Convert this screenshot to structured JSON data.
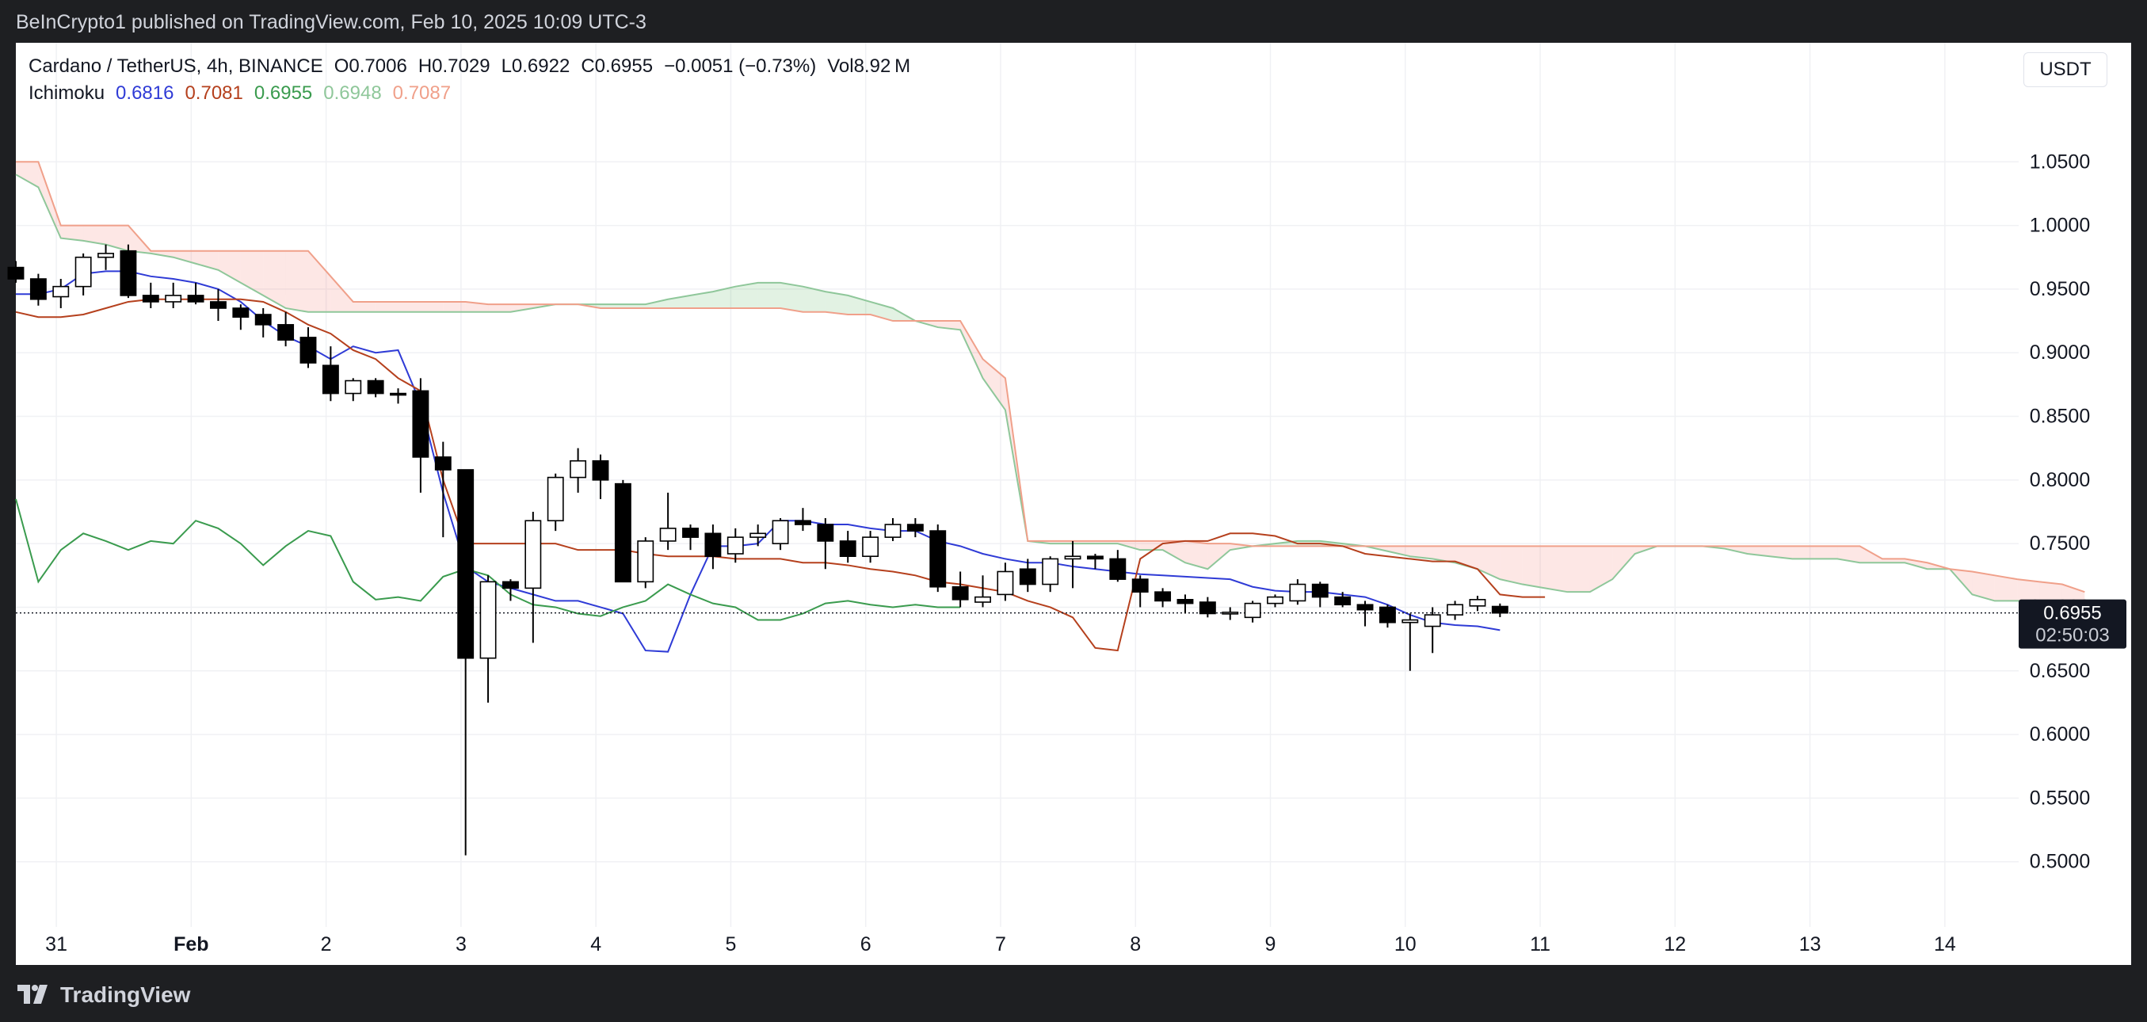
{
  "header": {
    "published_by": "BeInCrypto1 published on TradingView.com, Feb 10, 2025 10:09 UTC-3"
  },
  "footer": {
    "brand": "TradingView"
  },
  "legend": {
    "symbol": "Cardano / TetherUS, 4h, BINANCE",
    "open": "O0.7006",
    "high": "H0.7029",
    "low": "L0.6922",
    "close": "C0.6955",
    "change": "−0.0051 (−0.73%)",
    "volume": "Vol8.92 M",
    "indicator": "Ichimoku",
    "ichimoku_values": [
      "0.6816",
      "0.7081",
      "0.6955",
      "0.6948",
      "0.7087"
    ],
    "ichimoku_colors": [
      "#2f3bd6",
      "#b5401d",
      "#3a9b4e",
      "#8fc79a",
      "#f0a08a"
    ]
  },
  "currency_button": "USDT",
  "price_badge": {
    "price": "0.6955",
    "countdown": "02:50:03"
  },
  "chart_data": {
    "type": "candlestick",
    "title": "Cardano / TetherUS, 4h, BINANCE",
    "y_axis_ticks": [
      "1.0500",
      "1.0000",
      "0.9500",
      "0.9000",
      "0.8500",
      "0.8000",
      "0.7500",
      "0.7000",
      "0.6500",
      "0.6000",
      "0.5500",
      "0.5000"
    ],
    "x_axis_ticks": [
      "31",
      "Feb",
      "2",
      "3",
      "4",
      "5",
      "6",
      "7",
      "8",
      "9",
      "10",
      "11",
      "12",
      "13",
      "14"
    ],
    "x_tick_day_index": [
      -1,
      0,
      1,
      2,
      3,
      4,
      5,
      6,
      7,
      8,
      9,
      10,
      11,
      12,
      13
    ],
    "x_range_days": [
      -1.3,
      13.5
    ],
    "y_range": [
      0.455,
      1.09
    ],
    "last_price": 0.6955,
    "candles_start_day": -1.3,
    "candle_step_days": 0.1667,
    "candles": [
      [
        0.967,
        0.972,
        0.955,
        0.958
      ],
      [
        0.958,
        0.962,
        0.937,
        0.942
      ],
      [
        0.944,
        0.958,
        0.935,
        0.952
      ],
      [
        0.952,
        0.978,
        0.945,
        0.975
      ],
      [
        0.975,
        0.985,
        0.965,
        0.978
      ],
      [
        0.98,
        0.985,
        0.943,
        0.945
      ],
      [
        0.945,
        0.955,
        0.935,
        0.94
      ],
      [
        0.94,
        0.955,
        0.935,
        0.945
      ],
      [
        0.945,
        0.955,
        0.938,
        0.94
      ],
      [
        0.94,
        0.95,
        0.925,
        0.935
      ],
      [
        0.935,
        0.938,
        0.918,
        0.928
      ],
      [
        0.93,
        0.935,
        0.912,
        0.922
      ],
      [
        0.922,
        0.932,
        0.905,
        0.91
      ],
      [
        0.912,
        0.92,
        0.888,
        0.892
      ],
      [
        0.89,
        0.905,
        0.862,
        0.868
      ],
      [
        0.868,
        0.88,
        0.862,
        0.878
      ],
      [
        0.878,
        0.88,
        0.865,
        0.868
      ],
      [
        0.868,
        0.872,
        0.86,
        0.867
      ],
      [
        0.87,
        0.88,
        0.79,
        0.818
      ],
      [
        0.818,
        0.83,
        0.755,
        0.808
      ],
      [
        0.808,
        0.808,
        0.505,
        0.66
      ],
      [
        0.66,
        0.725,
        0.625,
        0.72
      ],
      [
        0.72,
        0.722,
        0.705,
        0.715
      ],
      [
        0.715,
        0.775,
        0.672,
        0.768
      ],
      [
        0.768,
        0.805,
        0.76,
        0.802
      ],
      [
        0.802,
        0.825,
        0.79,
        0.815
      ],
      [
        0.815,
        0.82,
        0.785,
        0.8
      ],
      [
        0.797,
        0.8,
        0.72,
        0.72
      ],
      [
        0.72,
        0.755,
        0.715,
        0.752
      ],
      [
        0.752,
        0.79,
        0.745,
        0.762
      ],
      [
        0.762,
        0.765,
        0.745,
        0.755
      ],
      [
        0.758,
        0.765,
        0.73,
        0.74
      ],
      [
        0.742,
        0.762,
        0.735,
        0.755
      ],
      [
        0.755,
        0.765,
        0.748,
        0.758
      ],
      [
        0.75,
        0.77,
        0.745,
        0.768
      ],
      [
        0.768,
        0.778,
        0.76,
        0.765
      ],
      [
        0.765,
        0.77,
        0.73,
        0.752
      ],
      [
        0.752,
        0.76,
        0.735,
        0.74
      ],
      [
        0.74,
        0.76,
        0.735,
        0.755
      ],
      [
        0.755,
        0.77,
        0.752,
        0.765
      ],
      [
        0.765,
        0.77,
        0.755,
        0.76
      ],
      [
        0.76,
        0.765,
        0.712,
        0.716
      ],
      [
        0.716,
        0.728,
        0.7,
        0.706
      ],
      [
        0.704,
        0.725,
        0.7,
        0.708
      ],
      [
        0.71,
        0.735,
        0.705,
        0.728
      ],
      [
        0.73,
        0.738,
        0.712,
        0.718
      ],
      [
        0.718,
        0.74,
        0.712,
        0.738
      ],
      [
        0.738,
        0.752,
        0.715,
        0.74
      ],
      [
        0.74,
        0.742,
        0.73,
        0.738
      ],
      [
        0.738,
        0.745,
        0.72,
        0.722
      ],
      [
        0.722,
        0.725,
        0.7,
        0.712
      ],
      [
        0.712,
        0.715,
        0.7,
        0.705
      ],
      [
        0.706,
        0.71,
        0.695,
        0.703
      ],
      [
        0.704,
        0.708,
        0.692,
        0.695
      ],
      [
        0.695,
        0.7,
        0.69,
        0.696
      ],
      [
        0.692,
        0.705,
        0.688,
        0.703
      ],
      [
        0.703,
        0.71,
        0.7,
        0.708
      ],
      [
        0.705,
        0.722,
        0.702,
        0.718
      ],
      [
        0.718,
        0.72,
        0.7,
        0.708
      ],
      [
        0.708,
        0.712,
        0.7,
        0.702
      ],
      [
        0.702,
        0.705,
        0.685,
        0.698
      ],
      [
        0.7,
        0.702,
        0.684,
        0.688
      ],
      [
        0.688,
        0.695,
        0.65,
        0.69
      ],
      [
        0.685,
        0.7,
        0.664,
        0.694
      ],
      [
        0.694,
        0.705,
        0.69,
        0.702
      ],
      [
        0.701,
        0.709,
        0.697,
        0.706
      ],
      [
        0.7006,
        0.7029,
        0.6922,
        0.6955
      ]
    ],
    "series": [
      {
        "name": "Conversion Line",
        "color": "#2f3bd6",
        "start_day": -1.3,
        "step_days": 0.1667,
        "values": [
          0.946,
          0.946,
          0.95,
          0.962,
          0.964,
          0.964,
          0.96,
          0.958,
          0.955,
          0.95,
          0.94,
          0.925,
          0.913,
          0.905,
          0.895,
          0.905,
          0.9,
          0.902,
          0.86,
          0.79,
          0.732,
          0.72,
          0.715,
          0.71,
          0.705,
          0.705,
          0.7,
          0.695,
          0.666,
          0.665,
          0.71,
          0.748,
          0.748,
          0.75,
          0.768,
          0.768,
          0.765,
          0.765,
          0.762,
          0.76,
          0.76,
          0.752,
          0.748,
          0.742,
          0.738,
          0.735,
          0.735,
          0.732,
          0.73,
          0.728,
          0.726,
          0.725,
          0.724,
          0.723,
          0.722,
          0.716,
          0.713,
          0.712,
          0.712,
          0.71,
          0.708,
          0.702,
          0.694,
          0.688,
          0.686,
          0.685,
          0.682
        ]
      },
      {
        "name": "Base Line",
        "color": "#b5401d",
        "start_day": -1.3,
        "step_days": 0.1667,
        "values": [
          0.932,
          0.928,
          0.928,
          0.93,
          0.935,
          0.94,
          0.942,
          0.942,
          0.942,
          0.942,
          0.942,
          0.94,
          0.932,
          0.922,
          0.915,
          0.902,
          0.895,
          0.88,
          0.87,
          0.8,
          0.75,
          0.75,
          0.75,
          0.75,
          0.75,
          0.745,
          0.745,
          0.745,
          0.742,
          0.74,
          0.74,
          0.74,
          0.738,
          0.738,
          0.738,
          0.735,
          0.735,
          0.733,
          0.73,
          0.728,
          0.725,
          0.72,
          0.718,
          0.715,
          0.712,
          0.705,
          0.7,
          0.692,
          0.668,
          0.666,
          0.738,
          0.75,
          0.752,
          0.752,
          0.758,
          0.758,
          0.756,
          0.75,
          0.75,
          0.748,
          0.742,
          0.74,
          0.738,
          0.736,
          0.736,
          0.73,
          0.71,
          0.708,
          0.708
        ]
      },
      {
        "name": "Lagging Span",
        "color": "#3a9b4e",
        "start_day": -1.3,
        "step_days": 0.1667,
        "values": [
          0.785,
          0.72,
          0.745,
          0.758,
          0.752,
          0.745,
          0.752,
          0.75,
          0.768,
          0.762,
          0.75,
          0.733,
          0.748,
          0.76,
          0.756,
          0.72,
          0.706,
          0.708,
          0.705,
          0.724,
          0.73,
          0.725,
          0.71,
          0.702,
          0.7,
          0.695,
          0.693,
          0.7,
          0.705,
          0.718,
          0.71,
          0.703,
          0.7,
          0.69,
          0.69,
          0.695,
          0.703,
          0.705,
          0.702,
          0.7,
          0.702,
          0.7,
          0.7
        ]
      }
    ],
    "cloud": {
      "start_day": -1.3,
      "step_days": 0.1667,
      "span_a": [
        1.04,
        1.03,
        0.99,
        0.988,
        0.985,
        0.98,
        0.978,
        0.975,
        0.97,
        0.965,
        0.955,
        0.945,
        0.935,
        0.932,
        0.932,
        0.932,
        0.932,
        0.932,
        0.932,
        0.932,
        0.932,
        0.932,
        0.932,
        0.935,
        0.938,
        0.938,
        0.938,
        0.938,
        0.938,
        0.942,
        0.945,
        0.948,
        0.952,
        0.955,
        0.955,
        0.952,
        0.948,
        0.945,
        0.94,
        0.935,
        0.925,
        0.92,
        0.918,
        0.88,
        0.855,
        0.752,
        0.75,
        0.75,
        0.75,
        0.75,
        0.745,
        0.745,
        0.735,
        0.73,
        0.745,
        0.748,
        0.75,
        0.752,
        0.752,
        0.75,
        0.748,
        0.744,
        0.74,
        0.738,
        0.735,
        0.73,
        0.722,
        0.718,
        0.715,
        0.712,
        0.712,
        0.722,
        0.742,
        0.748,
        0.748,
        0.748,
        0.746,
        0.742,
        0.74,
        0.738,
        0.738,
        0.738,
        0.735,
        0.735,
        0.735,
        0.73,
        0.73,
        0.71,
        0.705,
        0.705,
        0.705,
        0.705,
        0.705
      ],
      "span_b": [
        1.05,
        1.05,
        1.0,
        1.0,
        1.0,
        1.0,
        0.98,
        0.98,
        0.98,
        0.98,
        0.98,
        0.98,
        0.98,
        0.98,
        0.96,
        0.94,
        0.94,
        0.94,
        0.94,
        0.94,
        0.94,
        0.938,
        0.938,
        0.938,
        0.938,
        0.938,
        0.935,
        0.935,
        0.935,
        0.935,
        0.935,
        0.935,
        0.935,
        0.935,
        0.935,
        0.932,
        0.932,
        0.93,
        0.93,
        0.925,
        0.925,
        0.925,
        0.925,
        0.895,
        0.88,
        0.752,
        0.752,
        0.752,
        0.752,
        0.752,
        0.752,
        0.752,
        0.752,
        0.75,
        0.75,
        0.748,
        0.748,
        0.748,
        0.748,
        0.748,
        0.748,
        0.748,
        0.748,
        0.748,
        0.748,
        0.748,
        0.748,
        0.748,
        0.748,
        0.748,
        0.748,
        0.748,
        0.748,
        0.748,
        0.748,
        0.748,
        0.748,
        0.748,
        0.748,
        0.748,
        0.748,
        0.748,
        0.748,
        0.738,
        0.738,
        0.735,
        0.73,
        0.728,
        0.725,
        0.722,
        0.72,
        0.718,
        0.712
      ]
    }
  }
}
